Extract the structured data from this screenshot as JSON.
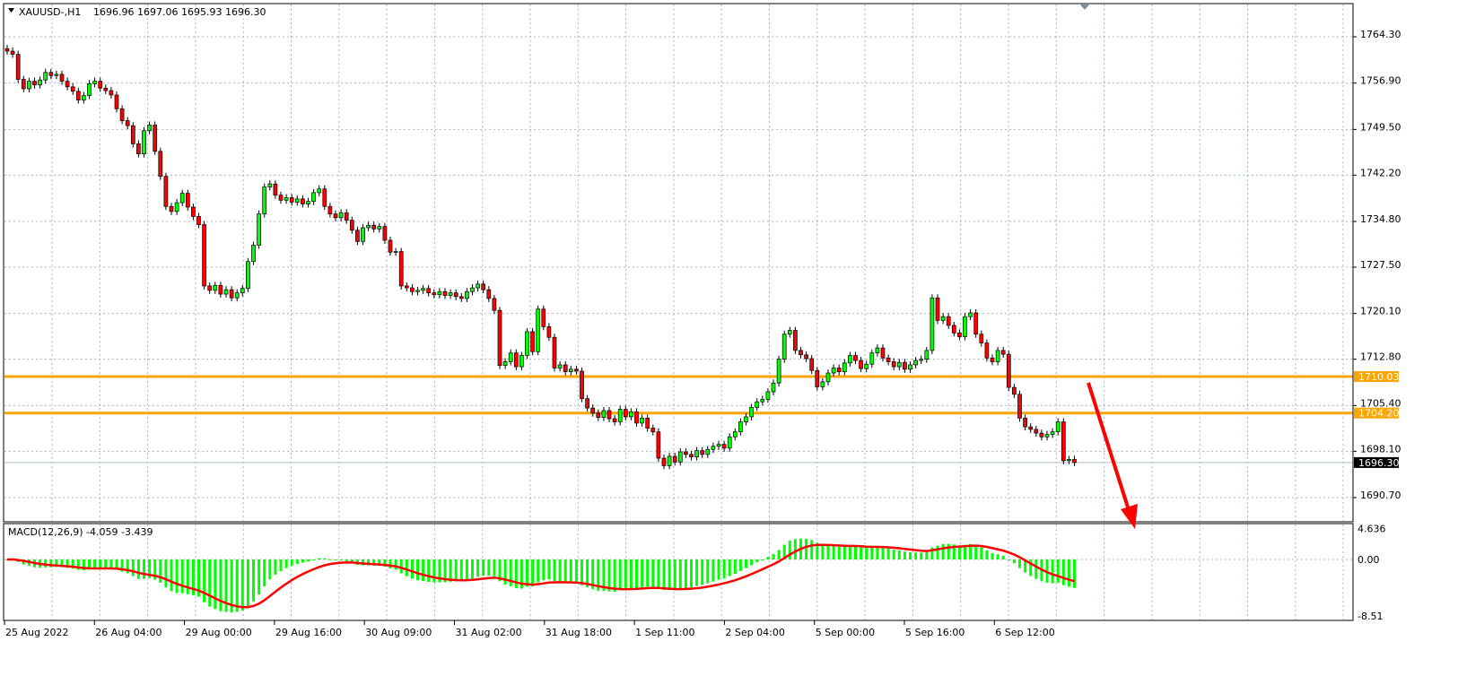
{
  "header": {
    "symbol": "XAUUSD-,H1",
    "ohlc": "1696.96 1697.06 1695.93 1696.30"
  },
  "colors": {
    "bull": "#00ff00",
    "bear": "#ff0000",
    "candle_outline": "#000000",
    "level_line": "#ffa500",
    "macd_hist": "#00ff00",
    "macd_signal": "#ff0000",
    "arrow": "#ff0000",
    "grid": "#a9b4c2"
  },
  "chart_data": {
    "type": "candlestick",
    "title": "XAUUSD-,H1",
    "timeframe": "H1",
    "price_axis": {
      "ticks": [
        "1764.30",
        "1756.90",
        "1749.50",
        "1742.20",
        "1734.80",
        "1727.50",
        "1720.10",
        "1712.80",
        "1705.40",
        "1698.10",
        "1690.70"
      ],
      "range": [
        1686.5,
        1769.8
      ]
    },
    "time_axis": {
      "ticks": [
        "25 Aug 2022",
        "26 Aug 04:00",
        "29 Aug 00:00",
        "29 Aug 16:00",
        "30 Aug 09:00",
        "31 Aug 02:00",
        "31 Aug 18:00",
        "1 Sep 11:00",
        "2 Sep 04:00",
        "5 Sep 00:00",
        "5 Sep 16:00",
        "6 Sep 12:00"
      ]
    },
    "close": [
      1762.0,
      1761.5,
      1757.5,
      1756.0,
      1757.2,
      1756.6,
      1757.4,
      1758.6,
      1758.1,
      1758.3,
      1757.2,
      1756.3,
      1755.6,
      1754.2,
      1754.9,
      1756.8,
      1757.2,
      1756.1,
      1755.7,
      1755.0,
      1752.8,
      1750.9,
      1750.1,
      1747.2,
      1745.6,
      1749.3,
      1750.2,
      1746.0,
      1742.0,
      1737.2,
      1736.4,
      1737.8,
      1739.3,
      1737.1,
      1735.6,
      1734.3,
      1724.5,
      1723.8,
      1724.6,
      1723.2,
      1723.9,
      1722.6,
      1723.4,
      1724.1,
      1728.4,
      1731.0,
      1736.0,
      1740.3,
      1740.8,
      1739.0,
      1738.2,
      1738.6,
      1737.9,
      1738.4,
      1737.6,
      1738.0,
      1739.4,
      1740.0,
      1737.2,
      1736.0,
      1735.4,
      1736.2,
      1735.0,
      1733.4,
      1731.6,
      1733.8,
      1734.2,
      1733.6,
      1734.0,
      1731.8,
      1729.9,
      1730.0,
      1724.5,
      1724.2,
      1723.6,
      1723.8,
      1724.1,
      1723.4,
      1723.1,
      1723.6,
      1723.0,
      1723.4,
      1722.8,
      1722.5,
      1723.6,
      1724.2,
      1724.8,
      1723.9,
      1722.5,
      1720.6,
      1711.8,
      1712.4,
      1713.8,
      1711.6,
      1713.4,
      1717.2,
      1714.0,
      1720.8,
      1718.0,
      1716.3,
      1711.4,
      1711.9,
      1710.8,
      1711.2,
      1710.9,
      1706.5,
      1705.0,
      1704.2,
      1703.5,
      1704.6,
      1703.3,
      1702.8,
      1704.8,
      1703.6,
      1704.4,
      1702.6,
      1703.4,
      1701.8,
      1701.2,
      1697.0,
      1695.8,
      1697.3,
      1696.4,
      1698.0,
      1697.6,
      1697.2,
      1698.2,
      1697.6,
      1698.4,
      1698.9,
      1699.2,
      1698.6,
      1700.4,
      1701.2,
      1702.8,
      1703.6,
      1705.1,
      1706.0,
      1706.4,
      1707.6,
      1709.0,
      1712.8,
      1716.8,
      1717.4,
      1714.2,
      1713.5,
      1712.9,
      1711.0,
      1708.4,
      1709.2,
      1710.6,
      1711.4,
      1710.8,
      1712.2,
      1713.4,
      1712.6,
      1711.3,
      1712.0,
      1713.8,
      1714.6,
      1713.0,
      1712.4,
      1711.6,
      1712.3,
      1711.2,
      1711.9,
      1712.6,
      1712.8,
      1714.2,
      1722.6,
      1719.0,
      1719.6,
      1718.2,
      1717.0,
      1716.4,
      1719.6,
      1720.2,
      1716.8,
      1715.4,
      1713.0,
      1712.4,
      1714.2,
      1713.6,
      1708.3,
      1707.2,
      1703.4,
      1702.0,
      1701.6,
      1701.0,
      1700.4,
      1700.8,
      1701.2,
      1702.8,
      1696.6,
      1696.8,
      1696.3
    ],
    "levels": [
      {
        "price": 1710.03,
        "label": "1710.03"
      },
      {
        "price": 1704.2,
        "label": "1704.20"
      }
    ],
    "current_price": {
      "price": 1696.3,
      "label": "1696.30"
    },
    "indicator": {
      "label": "MACD(12,26,9) -4.059 -3.439",
      "params": [
        12,
        26,
        9
      ],
      "macd": -4.059,
      "signal": -3.439,
      "axis_ticks": [
        "4.636",
        "0.00",
        "-8.51"
      ],
      "range": [
        -8.51,
        4.636
      ]
    },
    "annotation": "red downward arrow"
  }
}
